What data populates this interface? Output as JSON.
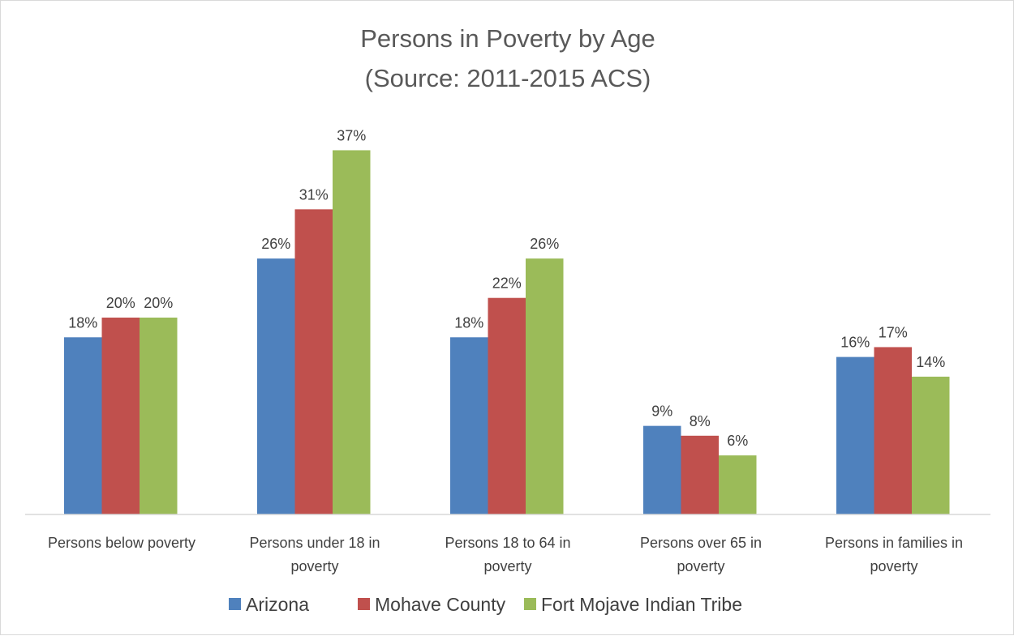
{
  "chart_data": {
    "type": "bar",
    "title_lines": [
      "Persons in Poverty by Age",
      "(Source: 2011-2015 ACS)"
    ],
    "xlabel": "",
    "ylabel": "",
    "ylim": [
      0,
      40
    ],
    "grid": false,
    "legend_position": "bottom",
    "categories": [
      [
        "Persons below poverty"
      ],
      [
        "Persons under 18 in",
        "poverty"
      ],
      [
        "Persons 18 to 64 in",
        "poverty"
      ],
      [
        "Persons over 65 in",
        "poverty"
      ],
      [
        "Persons in families in",
        "poverty"
      ]
    ],
    "series": [
      {
        "name": "Arizona",
        "color": "#4f81bd",
        "values": [
          18,
          26,
          18,
          9,
          16
        ],
        "labels": [
          "18%",
          "26%",
          "18%",
          "9%",
          "16%"
        ]
      },
      {
        "name": "Mohave County",
        "color": "#c0504d",
        "values": [
          20,
          31,
          22,
          8,
          17
        ],
        "labels": [
          "20%",
          "31%",
          "22%",
          "8%",
          "17%"
        ]
      },
      {
        "name": "Fort Mojave Indian Tribe",
        "color": "#9bbb59",
        "values": [
          20,
          37,
          26,
          6,
          14
        ],
        "labels": [
          "20%",
          "37%",
          "26%",
          "6%",
          "14%"
        ]
      }
    ]
  }
}
